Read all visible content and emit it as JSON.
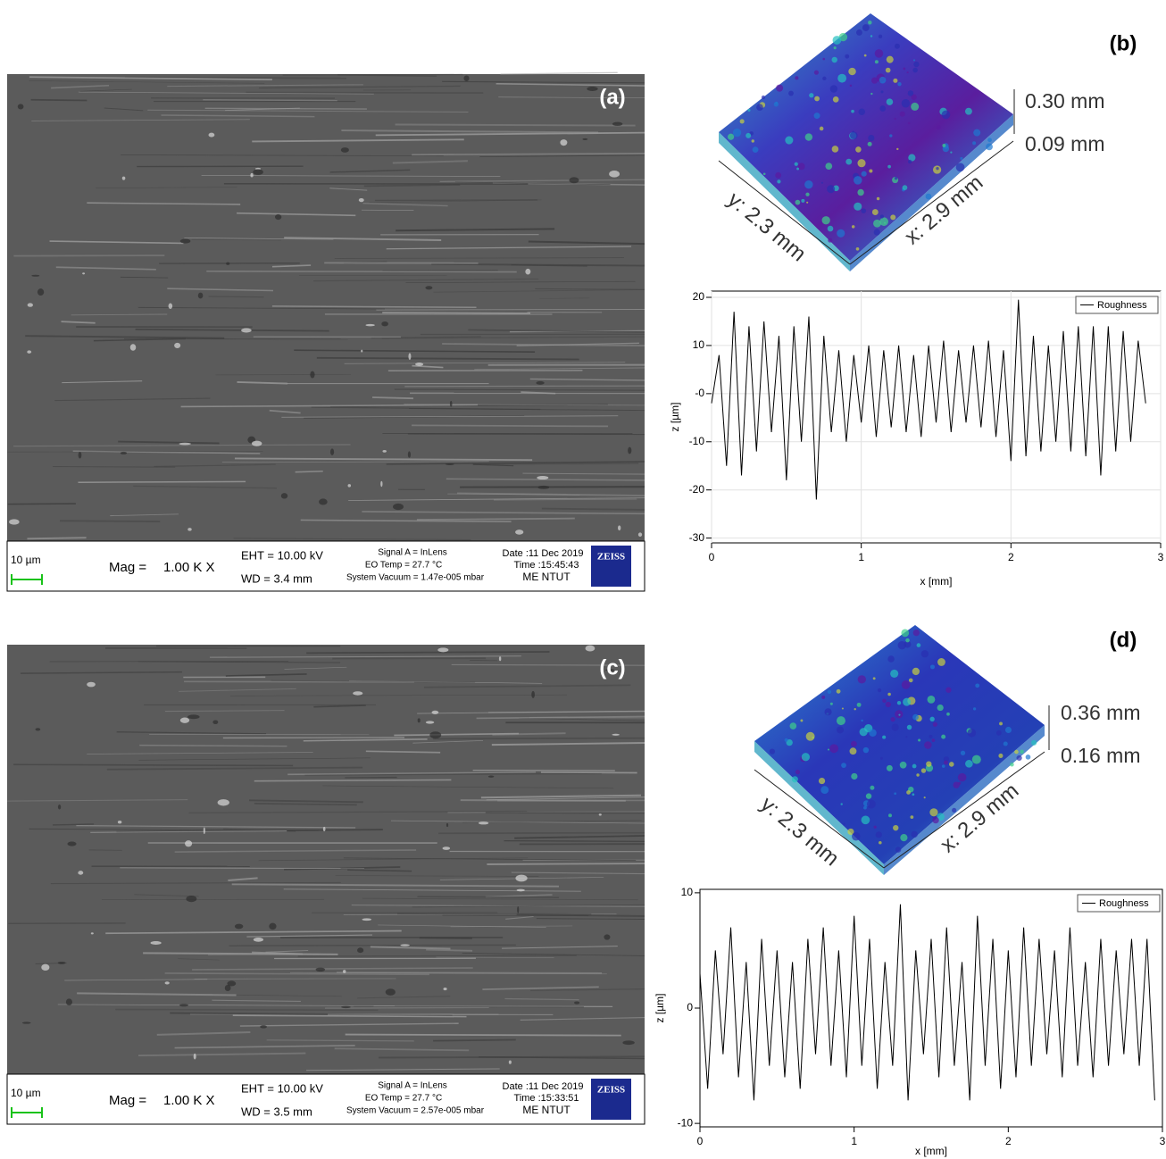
{
  "panels": [
    {
      "label": "(a)",
      "sem": {
        "scale": "10 µm",
        "mag_label": "Mag =",
        "mag": "1.00 K X",
        "eht": "EHT = 10.00 kV",
        "wd": "WD = 3.4 mm",
        "signal": "Signal A = InLens",
        "eo_temp": "EO Temp = 27.7 °C",
        "vacuum": "System Vacuum = 1.47e-005 mbar",
        "date": "Date :11 Dec 2019",
        "time": "Time :15:45:43",
        "site": "ME NTUT",
        "logo": "ZEISS"
      }
    },
    {
      "label": "(c)",
      "sem": {
        "scale": "10 µm",
        "mag_label": "Mag =",
        "mag": "1.00 K X",
        "eht": "EHT = 10.00 kV",
        "wd": "WD = 3.5 mm",
        "signal": "Signal A = InLens",
        "eo_temp": "EO Temp = 27.7 °C",
        "vacuum": "System Vacuum = 2.57e-005 mbar",
        "date": "Date :11 Dec 2019",
        "time": "Time :15:33:51",
        "site": "ME NTUT",
        "logo": "ZEISS"
      }
    }
  ],
  "surfaces": [
    {
      "label": "(b)",
      "z_max": "0.30 mm",
      "z_min": "0.09 mm",
      "y_extent": "y: 2.3 mm",
      "x_extent": "x: 2.9 mm"
    },
    {
      "label": "(d)",
      "z_max": "0.36 mm",
      "z_min": "0.16 mm",
      "y_extent": "y: 2.3 mm",
      "x_extent": "x: 2.9 mm"
    }
  ],
  "chart_data": [
    {
      "type": "line",
      "xlabel": "x [mm]",
      "ylabel": "z [µm]",
      "grid": true,
      "legend": "upper right",
      "x": [
        0,
        0.05,
        0.1,
        0.15,
        0.2,
        0.25,
        0.3,
        0.35,
        0.4,
        0.45,
        0.5,
        0.55,
        0.6,
        0.65,
        0.7,
        0.75,
        0.8,
        0.85,
        0.9,
        0.95,
        1,
        1.05,
        1.1,
        1.15,
        1.2,
        1.25,
        1.3,
        1.35,
        1.4,
        1.45,
        1.5,
        1.55,
        1.6,
        1.65,
        1.7,
        1.75,
        1.8,
        1.85,
        1.9,
        1.95,
        2,
        2.05,
        2.1,
        2.15,
        2.2,
        2.25,
        2.3,
        2.35,
        2.4,
        2.45,
        2.5,
        2.55,
        2.6,
        2.65,
        2.7,
        2.75,
        2.8,
        2.85,
        2.9
      ],
      "series": [
        {
          "name": "Roughness",
          "color": "#000000",
          "values": [
            -2,
            8,
            -15,
            17,
            -17,
            14,
            -12,
            15,
            -8,
            12,
            -18,
            14,
            -10,
            16,
            -22,
            12,
            -8,
            9,
            -10,
            8,
            -6,
            10,
            -9,
            9,
            -7,
            10,
            -8,
            8,
            -9,
            10,
            -6,
            11,
            -8,
            9,
            -6,
            10,
            -7,
            11,
            -9,
            9,
            -14,
            19.5,
            -13,
            12,
            -12,
            10,
            -10,
            13,
            -12,
            14,
            -13,
            14,
            -17,
            14,
            -12,
            13,
            -10,
            11,
            -2
          ]
        }
      ],
      "xlim": [
        0,
        3
      ],
      "xticks": [
        0,
        1,
        2,
        3
      ],
      "ylim": [
        -31,
        21.3
      ],
      "yticks": [
        -30,
        -20,
        -10,
        {
          "value": 0,
          "label": "-0"
        },
        10,
        20
      ]
    },
    {
      "type": "line",
      "xlabel": "x [mm]",
      "ylabel": "z [µm]",
      "grid": false,
      "legend": "upper right",
      "x": [
        0,
        0.05,
        0.1,
        0.15,
        0.2,
        0.25,
        0.3,
        0.35,
        0.4,
        0.45,
        0.5,
        0.55,
        0.6,
        0.65,
        0.7,
        0.75,
        0.8,
        0.85,
        0.9,
        0.95,
        1,
        1.05,
        1.1,
        1.15,
        1.2,
        1.25,
        1.3,
        1.35,
        1.4,
        1.45,
        1.5,
        1.55,
        1.6,
        1.65,
        1.7,
        1.75,
        1.8,
        1.85,
        1.9,
        1.95,
        2,
        2.05,
        2.1,
        2.15,
        2.2,
        2.25,
        2.3,
        2.35,
        2.4,
        2.45,
        2.5,
        2.55,
        2.6,
        2.65,
        2.7,
        2.75,
        2.8,
        2.85,
        2.9,
        2.95
      ],
      "series": [
        {
          "name": "Roughness",
          "color": "#000000",
          "values": [
            3,
            -7,
            5,
            -4,
            7,
            -6,
            4,
            -8,
            6,
            -5,
            5,
            -6,
            4,
            -7,
            6,
            -4,
            7,
            -5,
            5,
            -6,
            8,
            -5,
            6,
            -7,
            4,
            -5,
            9,
            -8,
            5,
            -4,
            6,
            -6,
            7,
            -5,
            4,
            -8,
            8,
            -5,
            6,
            -7,
            5,
            -6,
            7,
            -5,
            6,
            -4,
            5,
            -6,
            7,
            -5,
            4,
            -6,
            6,
            -5,
            5,
            -4,
            6,
            -5,
            6,
            -8
          ]
        }
      ],
      "xlim": [
        0,
        3
      ],
      "xticks": [
        0,
        1,
        2,
        3
      ],
      "ylim": [
        -10.3,
        10.3
      ],
      "yticks": [
        -10,
        0,
        10
      ]
    }
  ]
}
